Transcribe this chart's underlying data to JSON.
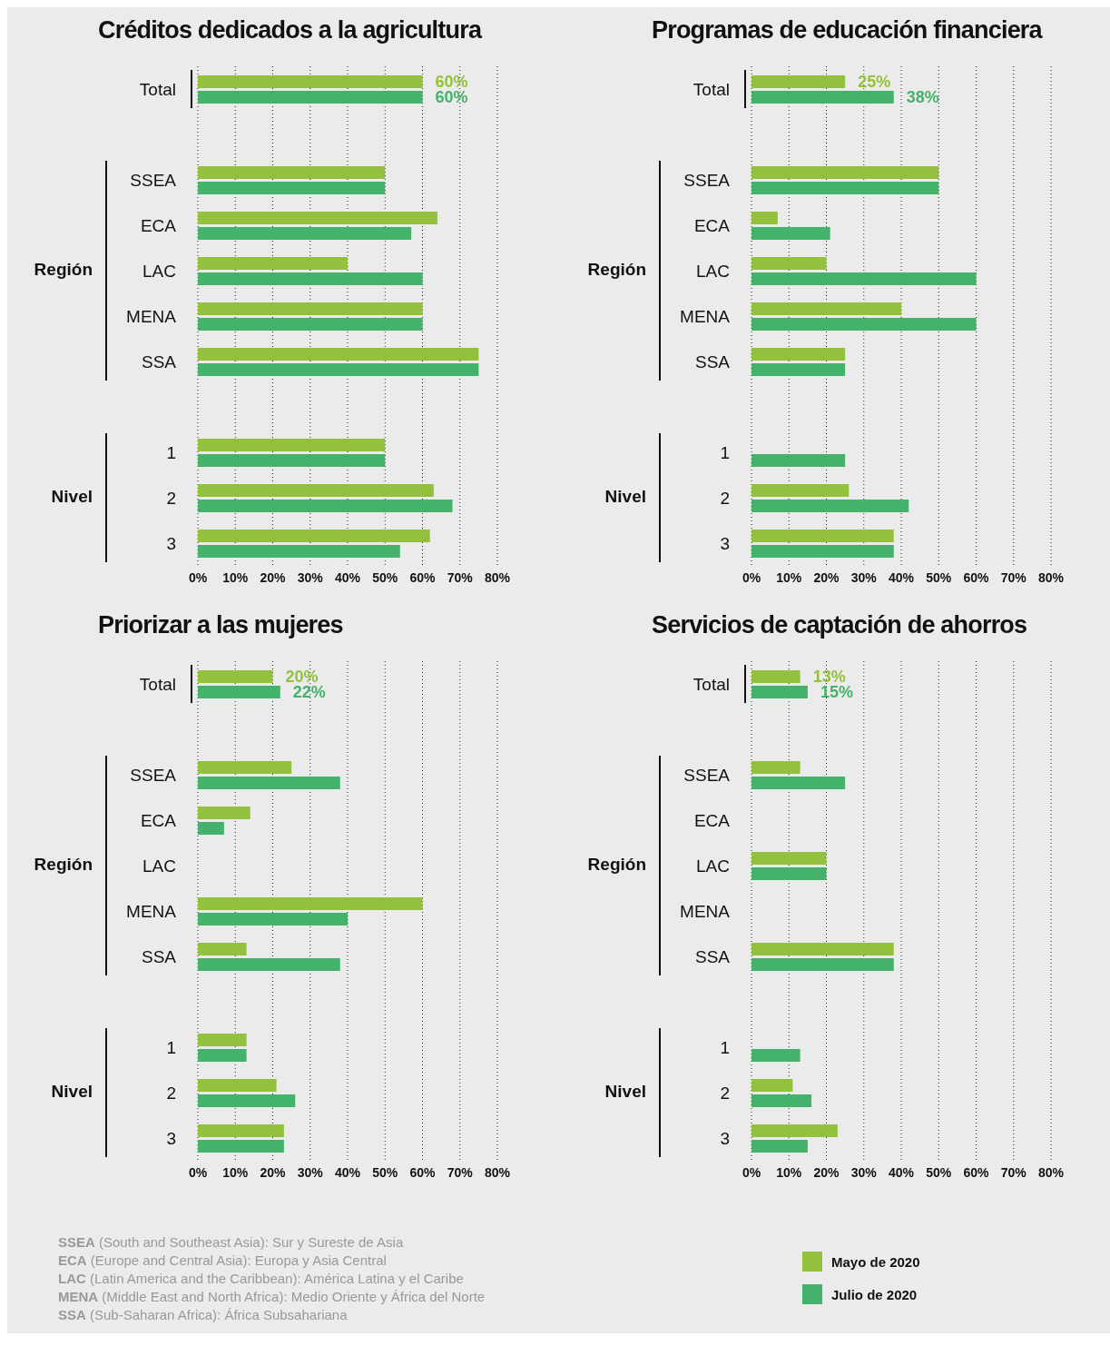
{
  "chart_data": [
    {
      "type": "bar",
      "orientation": "horizontal",
      "title": "Créditos dedicados a la agricultura",
      "categories": [
        "Total",
        "SSEA",
        "ECA",
        "LAC",
        "MENA",
        "SSA",
        "1",
        "2",
        "3"
      ],
      "series": [
        {
          "color": "#93c13e",
          "values": [
            60,
            50,
            64,
            40,
            60,
            75,
            50,
            63,
            62
          ],
          "value_labels": [
            "60%",
            null,
            null,
            null,
            null,
            null,
            null,
            null,
            null
          ]
        },
        {
          "color": "#45b26b",
          "values": [
            60,
            50,
            57,
            60,
            60,
            75,
            50,
            68,
            54
          ],
          "value_labels": [
            "60%",
            null,
            null,
            null,
            null,
            null,
            null,
            null,
            null
          ]
        }
      ],
      "xlim": [
        0,
        80
      ],
      "xticks": [
        {
          "value": 0,
          "label": "0%"
        },
        {
          "value": 10,
          "label": "10%"
        },
        {
          "value": 20,
          "label": "20%"
        },
        {
          "value": 30,
          "label": "30%"
        },
        {
          "value": 40,
          "label": "40%"
        },
        {
          "value": 50,
          "label": "50%"
        },
        {
          "value": 60,
          "label": "60%"
        },
        {
          "value": 70,
          "label": "70%"
        },
        {
          "value": 80,
          "label": "80%"
        }
      ],
      "grid": "x",
      "annotations": [
        "Región",
        "Nivel"
      ]
    },
    {
      "type": "bar",
      "orientation": "horizontal",
      "title": "Programas de educación financiera",
      "categories": [
        "Total",
        "SSEA",
        "ECA",
        "LAC",
        "MENA",
        "SSA",
        "1",
        "2",
        "3"
      ],
      "series": [
        {
          "color": "#93c13e",
          "values": [
            25,
            50,
            7,
            20,
            40,
            25,
            null,
            26,
            38
          ],
          "value_labels": [
            "25%",
            null,
            null,
            null,
            null,
            null,
            null,
            null,
            null
          ]
        },
        {
          "color": "#45b26b",
          "values": [
            38,
            50,
            21,
            60,
            60,
            25,
            25,
            42,
            38
          ],
          "value_labels": [
            "38%",
            null,
            null,
            null,
            null,
            null,
            null,
            null,
            null
          ]
        }
      ],
      "xlim": [
        0,
        80
      ],
      "xticks": [
        {
          "value": 0,
          "label": "0%"
        },
        {
          "value": 10,
          "label": "10%"
        },
        {
          "value": 20,
          "label": "20%"
        },
        {
          "value": 30,
          "label": "30%"
        },
        {
          "value": 40,
          "label": "40%"
        },
        {
          "value": 50,
          "label": "50%"
        },
        {
          "value": 60,
          "label": "60%"
        },
        {
          "value": 70,
          "label": "70%"
        },
        {
          "value": 80,
          "label": "80%"
        }
      ],
      "grid": "x",
      "annotations": [
        "Región",
        "Nivel"
      ]
    },
    {
      "type": "bar",
      "orientation": "horizontal",
      "title": "Priorizar a las mujeres",
      "categories": [
        "Total",
        "SSEA",
        "ECA",
        "LAC",
        "MENA",
        "SSA",
        "1",
        "2",
        "3"
      ],
      "series": [
        {
          "color": "#93c13e",
          "values": [
            20,
            25,
            14,
            null,
            60,
            13,
            13,
            21,
            23
          ],
          "value_labels": [
            "20%",
            null,
            null,
            null,
            null,
            null,
            null,
            null,
            null
          ]
        },
        {
          "color": "#45b26b",
          "values": [
            22,
            38,
            7,
            null,
            40,
            38,
            13,
            26,
            23
          ],
          "value_labels": [
            "22%",
            null,
            null,
            null,
            null,
            null,
            null,
            null,
            null
          ]
        }
      ],
      "xlim": [
        0,
        80
      ],
      "xticks": [
        {
          "value": 0,
          "label": "0%"
        },
        {
          "value": 10,
          "label": "10%"
        },
        {
          "value": 20,
          "label": "20%"
        },
        {
          "value": 30,
          "label": "30%"
        },
        {
          "value": 40,
          "label": "40%"
        },
        {
          "value": 50,
          "label": "50%"
        },
        {
          "value": 60,
          "label": "60%"
        },
        {
          "value": 70,
          "label": "70%"
        },
        {
          "value": 80,
          "label": "80%"
        }
      ],
      "grid": "x",
      "annotations": [
        "Región",
        "Nivel",
        "SSEA (South and Southeast Asia): Sur y Sureste de Asia",
        "ECA (Europe and Central Asia): Europa y Asia Central",
        "LAC (Latin America and the Caribbean): América Latina y el Caribe",
        "MENA (Middle East and North Africa): Medio Oriente y África del Norte",
        "SSA (Sub-Saharan Africa): África Subsahariana"
      ]
    },
    {
      "type": "bar",
      "orientation": "horizontal",
      "title": "Servicios de captación de ahorros",
      "categories": [
        "Total",
        "SSEA",
        "ECA",
        "LAC",
        "MENA",
        "SSA",
        "1",
        "2",
        "3"
      ],
      "series": [
        {
          "name": "Mayo de 2020",
          "color": "#93c13e",
          "values": [
            13,
            13,
            null,
            20,
            null,
            38,
            null,
            11,
            23
          ],
          "value_labels": [
            "13%",
            null,
            null,
            null,
            null,
            null,
            null,
            null,
            null
          ]
        },
        {
          "name": "Julio de 2020",
          "color": "#45b26b",
          "values": [
            15,
            25,
            null,
            20,
            null,
            38,
            13,
            16,
            15
          ],
          "value_labels": [
            "15%",
            null,
            null,
            null,
            null,
            null,
            null,
            null,
            null
          ]
        }
      ],
      "xlim": [
        0,
        80
      ],
      "xticks": [
        {
          "value": 0,
          "label": "0%"
        },
        {
          "value": 10,
          "label": "10%"
        },
        {
          "value": 20,
          "label": "20%"
        },
        {
          "value": 30,
          "label": "30%"
        },
        {
          "value": 40,
          "label": "40%"
        },
        {
          "value": 50,
          "label": "50%"
        },
        {
          "value": 60,
          "label": "60%"
        },
        {
          "value": 70,
          "label": "70%"
        },
        {
          "value": 80,
          "label": "80%"
        }
      ],
      "grid": "x",
      "legend": "bottom",
      "annotations": [
        "Región",
        "Nivel"
      ]
    }
  ]
}
